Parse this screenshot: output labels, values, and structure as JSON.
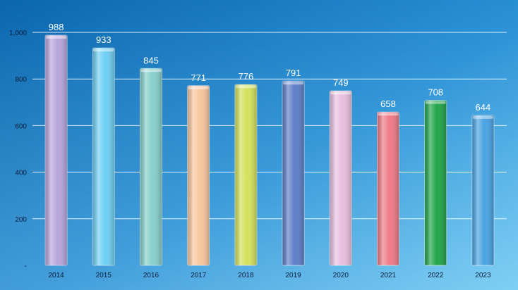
{
  "chart_data": {
    "type": "bar",
    "title": "",
    "xlabel": "",
    "ylabel": "",
    "categories": [
      "2014",
      "2015",
      "2016",
      "2017",
      "2018",
      "2019",
      "2020",
      "2021",
      "2022",
      "2023"
    ],
    "values": [
      988,
      933,
      845,
      771,
      776,
      791,
      749,
      658,
      708,
      644
    ],
    "data_labels": [
      "988",
      "933",
      "845",
      "771",
      "776",
      "791",
      "749",
      "658",
      "708",
      "644"
    ],
    "ylim": [
      0,
      1000
    ],
    "yticks": [
      0,
      200,
      400,
      600,
      800,
      1000
    ],
    "ytick_labels": [
      "-",
      "200",
      "400",
      "600",
      "800",
      "1,000"
    ],
    "grid": true,
    "legend": "none",
    "bar_colors": [
      "#b7a6dc",
      "#6fd0f5",
      "#86cfcb",
      "#f9c79e",
      "#d3e25c",
      "#5d7fc7",
      "#e9c0df",
      "#ef7b86",
      "#21a44a",
      "#4aa3e3"
    ],
    "background_colors": [
      "#0e6fb5",
      "#4fb8ea"
    ]
  }
}
